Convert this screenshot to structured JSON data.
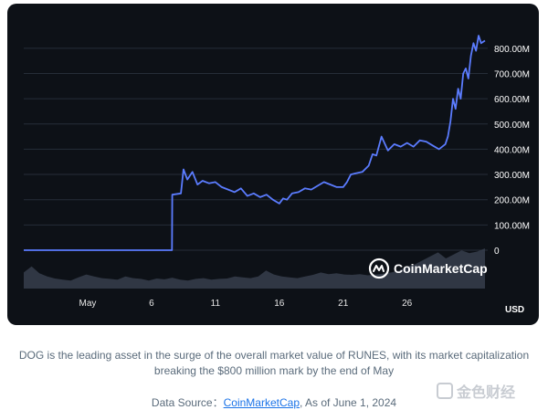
{
  "chart_data": {
    "type": "line",
    "title": "",
    "xlabel": "",
    "ylabel": "",
    "y_unit_label": "USD",
    "ylim": [
      0,
      850000000
    ],
    "y_ticks": [
      0,
      100000000,
      200000000,
      300000000,
      400000000,
      500000000,
      600000000,
      700000000,
      800000000
    ],
    "y_tick_labels": [
      "0",
      "100.00M",
      "200.00M",
      "300.00M",
      "400.00M",
      "500.00M",
      "600.00M",
      "700.00M",
      "800.00M"
    ],
    "x_range_days": [
      0,
      31
    ],
    "x_ticks": [
      {
        "label": "May",
        "day": 1
      },
      {
        "label": "6",
        "day": 6
      },
      {
        "label": "11",
        "day": 11
      },
      {
        "label": "16",
        "day": 16
      },
      {
        "label": "21",
        "day": 21
      },
      {
        "label": "26",
        "day": 26
      }
    ],
    "grid": true,
    "series": [
      {
        "name": "",
        "color": "#5b7cff",
        "x": [
          -4,
          7.6,
          7.62,
          8.3,
          8.5,
          8.8,
          9.2,
          9.6,
          10,
          10.5,
          11,
          11.5,
          12,
          12.5,
          13,
          13.5,
          14,
          14.5,
          15,
          15.5,
          16,
          16.3,
          16.6,
          17,
          17.5,
          18,
          18.5,
          19,
          19.5,
          20,
          20.5,
          21,
          21.3,
          21.6,
          22,
          22.5,
          23,
          23.3,
          23.6,
          24,
          24.5,
          25,
          25.5,
          26,
          26.5,
          27,
          27.5,
          28,
          28.5,
          29,
          29.2,
          29.4,
          29.6,
          29.8,
          30,
          30.2,
          30.4,
          30.6,
          30.8,
          31,
          31.2,
          31.4,
          31.6,
          31.8,
          32.1
        ],
        "y": [
          0,
          0,
          220000000,
          225000000,
          320000000,
          280000000,
          310000000,
          260000000,
          275000000,
          265000000,
          270000000,
          250000000,
          240000000,
          230000000,
          245000000,
          215000000,
          225000000,
          210000000,
          220000000,
          200000000,
          185000000,
          205000000,
          200000000,
          225000000,
          230000000,
          245000000,
          240000000,
          255000000,
          270000000,
          260000000,
          250000000,
          250000000,
          270000000,
          300000000,
          305000000,
          310000000,
          335000000,
          380000000,
          375000000,
          450000000,
          395000000,
          420000000,
          410000000,
          425000000,
          410000000,
          435000000,
          430000000,
          415000000,
          400000000,
          420000000,
          450000000,
          510000000,
          600000000,
          560000000,
          640000000,
          600000000,
          700000000,
          720000000,
          680000000,
          770000000,
          820000000,
          790000000,
          850000000,
          820000000,
          830000000
        ]
      }
    ],
    "volume": [
      40,
      55,
      38,
      30,
      25,
      22,
      20,
      28,
      35,
      30,
      26,
      24,
      22,
      30,
      26,
      24,
      20,
      25,
      23,
      27,
      22,
      20,
      24,
      26,
      22,
      24,
      25,
      30,
      28,
      26,
      30,
      45,
      35,
      30,
      28,
      26,
      30,
      34,
      40,
      36,
      38,
      35,
      34,
      36,
      33,
      35,
      37,
      40,
      45,
      55,
      60,
      70,
      80,
      90,
      75,
      85,
      95,
      88,
      92,
      100
    ],
    "volume_color": "#3a4150"
  },
  "brand": {
    "name": "CoinMarketCap"
  },
  "caption": {
    "text": "DOG is the leading asset in the surge of the overall market value of RUNES, with its market capitalization breaking the $800 million mark by the end of May"
  },
  "source": {
    "prefix": "Data Source：",
    "link": "CoinMarketCap",
    "suffix": ", As of June 1, 2024"
  },
  "watermark": {
    "text": "金色财经"
  }
}
